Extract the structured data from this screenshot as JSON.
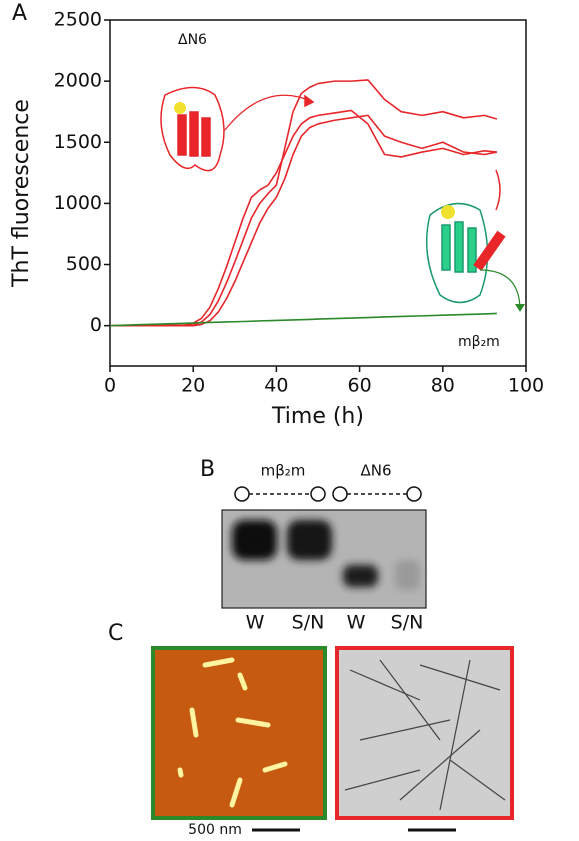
{
  "chart_data": {
    "type": "line",
    "label": "A",
    "xlabel": "Time (h)",
    "ylabel": "ThT fluorescence",
    "x": [
      0,
      10,
      18,
      20,
      22,
      24,
      26,
      28,
      30,
      32,
      34,
      36,
      38,
      40,
      42,
      44,
      46,
      48,
      50,
      54,
      58,
      62,
      66,
      70,
      75,
      80,
      85,
      90,
      93
    ],
    "series": [
      {
        "color": "#e8262a",
        "values": [
          0,
          0,
          5,
          20,
          60,
          150,
          300,
          480,
          680,
          880,
          1050,
          1110,
          1150,
          1250,
          1400,
          1550,
          1650,
          1700,
          1720,
          1740,
          1760,
          1650,
          1400,
          1380,
          1420,
          1450,
          1400,
          1430,
          1420
        ]
      },
      {
        "color": "#e8262a",
        "values": [
          0,
          0,
          0,
          5,
          30,
          90,
          200,
          350,
          520,
          700,
          880,
          1000,
          1080,
          1150,
          1450,
          1750,
          1900,
          1950,
          1980,
          2000,
          2000,
          2010,
          1850,
          1750,
          1720,
          1750,
          1700,
          1720,
          1690
        ]
      },
      {
        "color": "#e8262a",
        "values": [
          0,
          0,
          0,
          0,
          10,
          40,
          110,
          220,
          360,
          520,
          680,
          840,
          960,
          1050,
          1200,
          1400,
          1550,
          1620,
          1650,
          1680,
          1700,
          1720,
          1550,
          1500,
          1450,
          1500,
          1420,
          1400,
          1420
        ]
      },
      {
        "color": "#2a8a2a",
        "values": [
          0,
          11,
          19,
          21,
          24,
          26,
          28,
          30,
          32,
          34,
          36,
          39,
          41,
          43,
          45,
          47,
          49,
          51,
          54,
          58,
          62,
          66,
          71,
          75,
          80,
          86,
          91,
          96,
          100
        ]
      }
    ],
    "xlim": [
      0,
      100
    ],
    "xticks": [
      0,
      20,
      40,
      60,
      80,
      100
    ],
    "ylim": [
      -330,
      2500
    ],
    "yticks": [
      0,
      500,
      1000,
      1500,
      2000,
      2500
    ],
    "annotations": [
      {
        "text": "ΔN6",
        "color": "#e8262a"
      },
      {
        "text": "mβ₂m",
        "color": "#2a8a2a"
      }
    ]
  },
  "panel_b": {
    "label": "B",
    "groups": [
      "mβ₂m",
      "ΔN6"
    ],
    "lanes": [
      "W",
      "S/N",
      "W",
      "S/N"
    ]
  },
  "panel_c": {
    "label": "C",
    "scale": "500 nm"
  }
}
